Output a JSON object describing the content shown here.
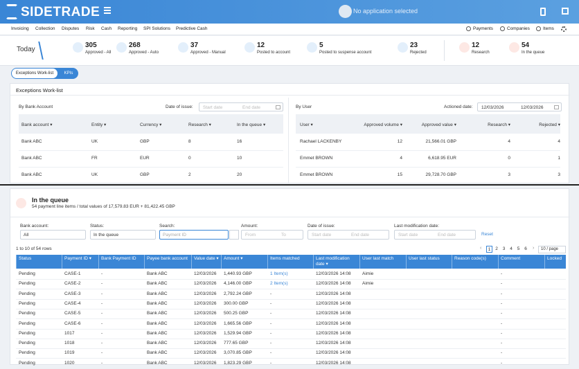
{
  "header": {
    "logo": "SIDETRADE",
    "app_selector": "No application selected"
  },
  "nav": {
    "items": [
      "Invoicing",
      "Collection",
      "Disputes",
      "Risk",
      "Cash",
      "Reporting",
      "SPI Solutions",
      "Predictive Cash"
    ],
    "right": [
      "Payments",
      "Companies",
      "Items"
    ]
  },
  "stats": {
    "today": "Today",
    "items": [
      {
        "value": 305,
        "label": "Approved - All"
      },
      {
        "value": 268,
        "label": "Approved - Auto"
      },
      {
        "value": 37,
        "label": "Approved - Manual"
      },
      {
        "value": 12,
        "label": "Posted to account"
      },
      {
        "value": 5,
        "label": "Posted to suspense account"
      },
      {
        "value": 23,
        "label": "Rejected"
      },
      {
        "value": 12,
        "label": "Research"
      },
      {
        "value": 54,
        "label": "In the queue"
      }
    ]
  },
  "tabs": [
    "Exceptions Work-list",
    "KPIs"
  ],
  "worklist": {
    "title": "Exceptions Work-list",
    "left": {
      "title": "By Bank Account",
      "date_label": "Date of issue:",
      "start": "Start date",
      "end": "End date",
      "columns": [
        "Bank account",
        "Entity",
        "Currency",
        "Research",
        "In the queue"
      ],
      "rows": [
        [
          "Bank ABC",
          "UK",
          "GBP",
          8,
          16
        ],
        [
          "Bank ABC",
          "FR",
          "EUR",
          0,
          10
        ],
        [
          "Bank ABC",
          "UK",
          "GBP",
          2,
          20
        ]
      ]
    },
    "right": {
      "title": "By User",
      "date_label": "Actioned date:",
      "start": "12/03/2026",
      "end": "12/03/2026",
      "columns": [
        "User",
        "Approved volume",
        "Approved value",
        "Research",
        "Rejected"
      ],
      "rows": [
        [
          "Rachael LACKENBY",
          12,
          "21,566.01 GBP",
          4,
          4
        ],
        [
          "Emmet BROWN",
          4,
          "6,618.95 EUR",
          0,
          1
        ],
        [
          "Emmet BROWN",
          15,
          "29,728.70 GBP",
          3,
          3
        ]
      ]
    }
  },
  "queue": {
    "title": "In the queue",
    "subtitle": "54 payment line items / total values of 17,579.83 EUR + 81,422.45 GBP",
    "filters": {
      "bank_label": "Bank account:",
      "bank_value": "All",
      "status_label": "Status:",
      "status_value": "In the queue",
      "search_label": "Search:",
      "search_placeholder": "Payment ID",
      "amount_label": "Amount:",
      "amount_from": "From",
      "amount_to": "To",
      "issue_label": "Date of issue:",
      "issue_start": "Start date",
      "issue_end": "End date",
      "mod_label": "Last modification date:",
      "mod_start": "Start date",
      "mod_end": "End date",
      "reset": "Reset"
    },
    "range": "1 to 10 of 54 rows",
    "pages": [
      1,
      2,
      3,
      4,
      5,
      6
    ],
    "page_size": "10 / page",
    "columns": [
      "Status",
      "Payment ID",
      "Bank Payment ID",
      "Payee bank account",
      "Value date",
      "Amount",
      "Items matched",
      "Last modification date",
      "User last match",
      "User last status",
      "Reason code(s)",
      "Comment",
      "Locked"
    ],
    "rows": [
      [
        "Pending",
        "CASE-1",
        "-",
        "Bank ABC",
        "12/03/2026",
        "1,440.93 GBP",
        "1 Item(s)",
        "12/03/2026 14:08",
        "Aimie",
        null,
        null,
        "-",
        null
      ],
      [
        "Pending",
        "CASE-2",
        "-",
        "Bank ABC",
        "12/03/2026",
        "4,146.00 GBP",
        "2 Item(s)",
        "12/03/2026 14:08",
        "Aimie",
        null,
        null,
        "-",
        null
      ],
      [
        "Pending",
        "CASE-3",
        "-",
        "Bank ABC",
        "12/03/2026",
        "2,792.24 GBP",
        "-",
        "12/03/2026 14:08",
        null,
        null,
        null,
        "-",
        null
      ],
      [
        "Pending",
        "CASE-4",
        "-",
        "Bank ABC",
        "12/03/2026",
        "300.00 GBP",
        "-",
        "12/03/2026 14:08",
        null,
        null,
        null,
        "-",
        null
      ],
      [
        "Pending",
        "CASE-5",
        "-",
        "Bank ABC",
        "12/03/2026",
        "500.25 GBP",
        "-",
        "12/03/2026 14:08",
        null,
        null,
        null,
        "-",
        null
      ],
      [
        "Pending",
        "CASE-6",
        "-",
        "Bank ABC",
        "12/03/2026",
        "1,665.56 GBP",
        "-",
        "12/03/2026 14:08",
        null,
        null,
        null,
        "-",
        null
      ],
      [
        "Pending",
        "1017",
        "-",
        "Bank ABC",
        "12/03/2026",
        "1,529.94 GBP",
        "-",
        "12/03/2026 14:08",
        null,
        null,
        null,
        "-",
        null
      ],
      [
        "Pending",
        "1018",
        "-",
        "Bank ABC",
        "12/03/2026",
        "777.65 GBP",
        "-",
        "12/03/2026 14:08",
        null,
        null,
        null,
        "-",
        null
      ],
      [
        "Pending",
        "1019",
        "-",
        "Bank ABC",
        "12/03/2026",
        "3,070.85 GBP",
        "-",
        "12/03/2026 14:08",
        null,
        null,
        null,
        "-",
        null
      ],
      [
        "Pending",
        "1020",
        "-",
        "Bank ABC",
        "12/03/2026",
        "1,823.29 GBP",
        "-",
        "12/03/2026 14:08",
        null,
        null,
        null,
        "-",
        null
      ]
    ]
  }
}
